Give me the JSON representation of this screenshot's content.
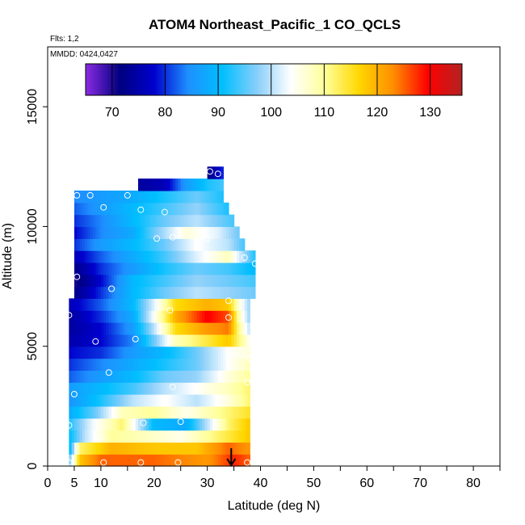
{
  "chart_data": {
    "type": "heatmap",
    "title": "ATOM4 Northeast_Pacific_1 CO_QCLS",
    "flights_label": "Flts: 1,2",
    "dates_label": "MMDD: 0424,0427",
    "xlabel": "Latitude (deg N)",
    "ylabel": "Altitude (m)",
    "xlim": [
      0,
      85
    ],
    "ylim": [
      0,
      17500
    ],
    "x_ticks": [
      0,
      5,
      10,
      20,
      30,
      40,
      50,
      60,
      70,
      80
    ],
    "y_ticks": [
      0,
      5000,
      10000,
      15000
    ],
    "colorbar": {
      "range": [
        65,
        136
      ],
      "ticks": [
        70,
        80,
        90,
        100,
        110,
        120,
        130
      ],
      "colors": [
        "#8b2be2",
        "#000080",
        "#0000cd",
        "#1e90ff",
        "#00bfff",
        "#87cefa",
        "#ffffff",
        "#ffff99",
        "#ffd700",
        "#ff8c00",
        "#ff0000",
        "#b22222"
      ]
    },
    "arrow_latitude": 34.5,
    "layer_height_m": 500,
    "layers": [
      {
        "alt": 250,
        "lat0": 4,
        "lat1": 38,
        "cols": [
          [
            4,
            95
          ],
          [
            6,
            118
          ],
          [
            10,
            125
          ],
          [
            20,
            125
          ],
          [
            30,
            122
          ],
          [
            35,
            128
          ],
          [
            38,
            125
          ]
        ]
      },
      {
        "alt": 750,
        "lat0": 4,
        "lat1": 38,
        "cols": [
          [
            4,
            88
          ],
          [
            6,
            112
          ],
          [
            12,
            120
          ],
          [
            20,
            118
          ],
          [
            28,
            118
          ],
          [
            34,
            125
          ],
          [
            38,
            122
          ]
        ]
      },
      {
        "alt": 1250,
        "lat0": 4,
        "lat1": 38,
        "cols": [
          [
            4,
            90
          ],
          [
            7,
            100
          ],
          [
            12,
            110
          ],
          [
            18,
            108
          ],
          [
            25,
            105
          ],
          [
            32,
            112
          ],
          [
            38,
            118
          ]
        ]
      },
      {
        "alt": 1750,
        "lat0": 4,
        "lat1": 38,
        "cols": [
          [
            4,
            92
          ],
          [
            8,
            102
          ],
          [
            14,
            112
          ],
          [
            20,
            90
          ],
          [
            26,
            88
          ],
          [
            30,
            100
          ],
          [
            34,
            112
          ],
          [
            38,
            118
          ]
        ]
      },
      {
        "alt": 2250,
        "lat0": 4,
        "lat1": 38,
        "cols": [
          [
            4,
            88
          ],
          [
            9,
            96
          ],
          [
            14,
            108
          ],
          [
            20,
            110
          ],
          [
            26,
            105
          ],
          [
            32,
            110
          ],
          [
            38,
            115
          ]
        ]
      },
      {
        "alt": 2750,
        "lat0": 4,
        "lat1": 38,
        "cols": [
          [
            4,
            85
          ],
          [
            10,
            92
          ],
          [
            16,
            100
          ],
          [
            22,
            104
          ],
          [
            28,
            100
          ],
          [
            34,
            106
          ],
          [
            38,
            112
          ]
        ]
      },
      {
        "alt": 3250,
        "lat0": 4,
        "lat1": 38,
        "cols": [
          [
            4,
            86
          ],
          [
            10,
            90
          ],
          [
            16,
            94
          ],
          [
            22,
            100
          ],
          [
            28,
            104
          ],
          [
            34,
            108
          ],
          [
            38,
            112
          ]
        ]
      },
      {
        "alt": 3750,
        "lat0": 4,
        "lat1": 38,
        "cols": [
          [
            4,
            82
          ],
          [
            10,
            86
          ],
          [
            16,
            90
          ],
          [
            22,
            96
          ],
          [
            28,
            98
          ],
          [
            34,
            106
          ],
          [
            38,
            110
          ]
        ]
      },
      {
        "alt": 4250,
        "lat0": 4,
        "lat1": 38,
        "cols": [
          [
            4,
            80
          ],
          [
            10,
            84
          ],
          [
            16,
            88
          ],
          [
            22,
            92
          ],
          [
            28,
            96
          ],
          [
            34,
            104
          ],
          [
            38,
            108
          ]
        ]
      },
      {
        "alt": 4750,
        "lat0": 4,
        "lat1": 38,
        "cols": [
          [
            4,
            78
          ],
          [
            10,
            80
          ],
          [
            16,
            86
          ],
          [
            22,
            90
          ],
          [
            28,
            96
          ],
          [
            34,
            104
          ],
          [
            38,
            106
          ]
        ]
      },
      {
        "alt": 5250,
        "lat0": 4,
        "lat1": 38,
        "cols": [
          [
            4,
            75
          ],
          [
            10,
            78
          ],
          [
            16,
            84
          ],
          [
            20,
            96
          ],
          [
            24,
            108
          ],
          [
            30,
            114
          ],
          [
            34,
            118
          ],
          [
            37,
            108
          ],
          [
            38,
            104
          ]
        ]
      },
      {
        "alt": 5750,
        "lat0": 4,
        "lat1": 38,
        "cols": [
          [
            4,
            74
          ],
          [
            10,
            78
          ],
          [
            16,
            86
          ],
          [
            20,
            100
          ],
          [
            24,
            116
          ],
          [
            30,
            122
          ],
          [
            34,
            124
          ],
          [
            36,
            110
          ],
          [
            38,
            100
          ]
        ]
      },
      {
        "alt": 6250,
        "lat0": 4,
        "lat1": 38,
        "cols": [
          [
            4,
            74
          ],
          [
            10,
            80
          ],
          [
            16,
            88
          ],
          [
            20,
            104
          ],
          [
            24,
            120
          ],
          [
            30,
            130
          ],
          [
            34,
            126
          ],
          [
            36,
            108
          ],
          [
            38,
            98
          ]
        ]
      },
      {
        "alt": 6750,
        "lat0": 4,
        "lat1": 38,
        "cols": [
          [
            4,
            76
          ],
          [
            10,
            82
          ],
          [
            16,
            90
          ],
          [
            20,
            102
          ],
          [
            24,
            116
          ],
          [
            30,
            120
          ],
          [
            34,
            118
          ],
          [
            36,
            106
          ],
          [
            38,
            98
          ]
        ]
      },
      {
        "alt": 7250,
        "lat0": 5,
        "lat1": 39,
        "cols": [
          [
            5,
            72
          ],
          [
            10,
            80
          ],
          [
            16,
            90
          ],
          [
            22,
            96
          ],
          [
            28,
            100
          ],
          [
            34,
            98
          ],
          [
            39,
            96
          ]
        ]
      },
      {
        "alt": 7750,
        "lat0": 5,
        "lat1": 39,
        "cols": [
          [
            5,
            70
          ],
          [
            10,
            78
          ],
          [
            16,
            90
          ],
          [
            22,
            94
          ],
          [
            28,
            98
          ],
          [
            34,
            96
          ],
          [
            39,
            94
          ]
        ]
      },
      {
        "alt": 8250,
        "lat0": 5,
        "lat1": 39,
        "cols": [
          [
            5,
            72
          ],
          [
            10,
            80
          ],
          [
            16,
            86
          ],
          [
            22,
            92
          ],
          [
            28,
            96
          ],
          [
            34,
            94
          ],
          [
            39,
            90
          ]
        ]
      },
      {
        "alt": 8750,
        "lat0": 5,
        "lat1": 39,
        "cols": [
          [
            5,
            76
          ],
          [
            10,
            82
          ],
          [
            16,
            88
          ],
          [
            22,
            94
          ],
          [
            28,
            102
          ],
          [
            34,
            108
          ],
          [
            39,
            92
          ]
        ]
      },
      {
        "alt": 9250,
        "lat0": 5,
        "lat1": 37,
        "cols": [
          [
            5,
            80
          ],
          [
            10,
            86
          ],
          [
            16,
            90
          ],
          [
            22,
            96
          ],
          [
            28,
            104
          ],
          [
            34,
            100
          ],
          [
            37,
            94
          ]
        ]
      },
      {
        "alt": 9750,
        "lat0": 5,
        "lat1": 36,
        "cols": [
          [
            5,
            78
          ],
          [
            10,
            84
          ],
          [
            16,
            88
          ],
          [
            20,
            96
          ],
          [
            26,
            106
          ],
          [
            32,
            102
          ],
          [
            36,
            96
          ]
        ]
      },
      {
        "alt": 10250,
        "lat0": 5,
        "lat1": 35,
        "cols": [
          [
            5,
            80
          ],
          [
            10,
            84
          ],
          [
            16,
            90
          ],
          [
            22,
            96
          ],
          [
            28,
            100
          ],
          [
            35,
            94
          ]
        ]
      },
      {
        "alt": 10750,
        "lat0": 5,
        "lat1": 34,
        "cols": [
          [
            5,
            82
          ],
          [
            10,
            86
          ],
          [
            16,
            90
          ],
          [
            22,
            94
          ],
          [
            28,
            98
          ],
          [
            34,
            92
          ]
        ]
      },
      {
        "alt": 11250,
        "lat0": 5,
        "lat1": 33,
        "cols": [
          [
            5,
            84
          ],
          [
            10,
            86
          ],
          [
            16,
            88
          ],
          [
            22,
            92
          ],
          [
            28,
            96
          ],
          [
            33,
            92
          ]
        ]
      },
      {
        "alt": 11750,
        "lat0": 17,
        "lat1": 33,
        "cols": [
          [
            17,
            74
          ],
          [
            22,
            76
          ],
          [
            26,
            86
          ],
          [
            30,
            92
          ],
          [
            33,
            94
          ]
        ]
      },
      {
        "alt": 12250,
        "lat0": 30,
        "lat1": 33,
        "cols": [
          [
            30,
            72
          ],
          [
            31,
            74
          ],
          [
            33,
            80
          ]
        ]
      }
    ],
    "points": [
      [
        5.5,
        11300
      ],
      [
        8,
        11300
      ],
      [
        15,
        11300
      ],
      [
        30.5,
        12300
      ],
      [
        32,
        12200
      ],
      [
        10.5,
        10800
      ],
      [
        17.5,
        10700
      ],
      [
        22,
        10600
      ],
      [
        20.5,
        9500
      ],
      [
        23.5,
        9550
      ],
      [
        30,
        9500
      ],
      [
        37,
        8700
      ],
      [
        39,
        8450
      ],
      [
        5.5,
        7900
      ],
      [
        12,
        7400
      ],
      [
        23,
        6500
      ],
      [
        34,
        6900
      ],
      [
        34,
        6200
      ],
      [
        4,
        6300
      ],
      [
        9,
        5200
      ],
      [
        16.5,
        5300
      ],
      [
        38,
        4500
      ],
      [
        11.5,
        3900
      ],
      [
        37.5,
        3500
      ],
      [
        23.5,
        3300
      ],
      [
        5,
        3000
      ],
      [
        18,
        1800
      ],
      [
        25,
        1850
      ],
      [
        4,
        1700
      ],
      [
        10,
        1200
      ],
      [
        4,
        150
      ],
      [
        10.5,
        150
      ],
      [
        17.5,
        150
      ],
      [
        24.5,
        150
      ],
      [
        37.5,
        150
      ]
    ]
  }
}
